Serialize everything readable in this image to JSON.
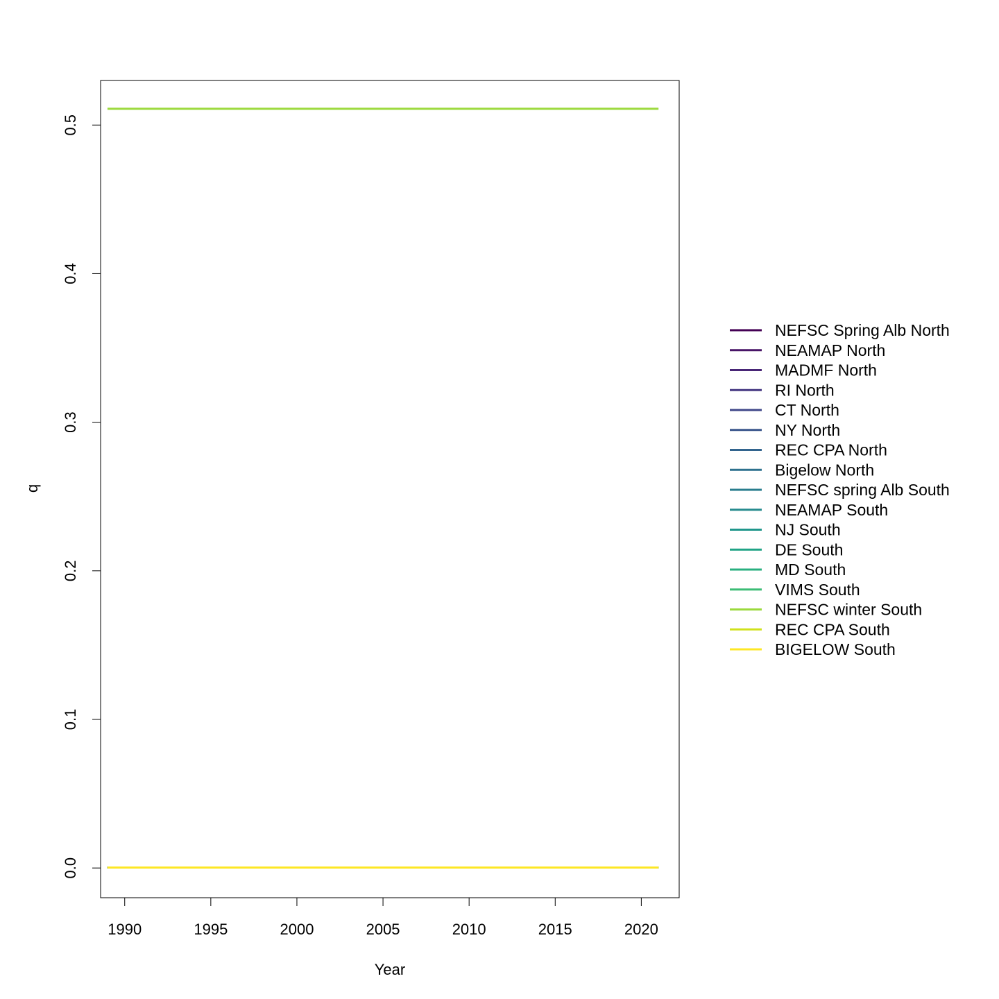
{
  "chart_data": {
    "type": "line",
    "title": "",
    "xlabel": "Year",
    "ylabel": "q",
    "xlim": [
      1988.6,
      2022.2
    ],
    "ylim": [
      -0.02,
      0.53
    ],
    "x_ticks": [
      1990,
      1995,
      2000,
      2005,
      2010,
      2015,
      2020
    ],
    "x_tick_labels": [
      "1990",
      "1995",
      "2000",
      "2005",
      "2010",
      "2015",
      "2020"
    ],
    "y_ticks": [
      0.0,
      0.1,
      0.2,
      0.3,
      0.4,
      0.5
    ],
    "y_tick_labels": [
      "0.0",
      "0.1",
      "0.2",
      "0.3",
      "0.4",
      "0.5"
    ],
    "grid": false,
    "legend_position": "right",
    "x": [
      1989,
      2021
    ],
    "series": [
      {
        "name": "NEFSC Spring Alb North",
        "color": "#440154",
        "values": [
          0.0003,
          0.0003
        ]
      },
      {
        "name": "NEAMAP North",
        "color": "#481467",
        "values": [
          0.0003,
          0.0003
        ]
      },
      {
        "name": "MADMF North",
        "color": "#482576",
        "values": [
          0.0003,
          0.0003
        ]
      },
      {
        "name": "RI North",
        "color": "#453781",
        "values": [
          0.0003,
          0.0003
        ]
      },
      {
        "name": "CT North",
        "color": "#3F4788",
        "values": [
          0.0003,
          0.0003
        ]
      },
      {
        "name": "NY North",
        "color": "#39558C",
        "values": [
          0.0003,
          0.0003
        ]
      },
      {
        "name": "REC CPA North",
        "color": "#32648E",
        "values": [
          0.0003,
          0.0003
        ]
      },
      {
        "name": "Bigelow North",
        "color": "#2D718E",
        "values": [
          0.0003,
          0.0003
        ]
      },
      {
        "name": "NEFSC spring Alb South",
        "color": "#287D8E",
        "values": [
          0.0003,
          0.0003
        ]
      },
      {
        "name": "NEAMAP South",
        "color": "#238A8D",
        "values": [
          0.0003,
          0.0003
        ]
      },
      {
        "name": "NJ South",
        "color": "#1F968B",
        "values": [
          0.0003,
          0.0003
        ]
      },
      {
        "name": "DE South",
        "color": "#20A386",
        "values": [
          0.0003,
          0.0003
        ]
      },
      {
        "name": "MD South",
        "color": "#29AF7F",
        "values": [
          0.0003,
          0.0003
        ]
      },
      {
        "name": "VIMS South",
        "color": "#3CBC75",
        "values": [
          0.0003,
          0.0003
        ]
      },
      {
        "name": "NEFSC winter South",
        "color": "#9BD93C",
        "values": [
          0.511,
          0.511
        ]
      },
      {
        "name": "REC CPA South",
        "color": "#D0E11C",
        "values": [
          0.0003,
          0.0003
        ]
      },
      {
        "name": "BIGELOW South",
        "color": "#FDE725",
        "values": [
          0.0003,
          0.0003
        ]
      }
    ]
  }
}
